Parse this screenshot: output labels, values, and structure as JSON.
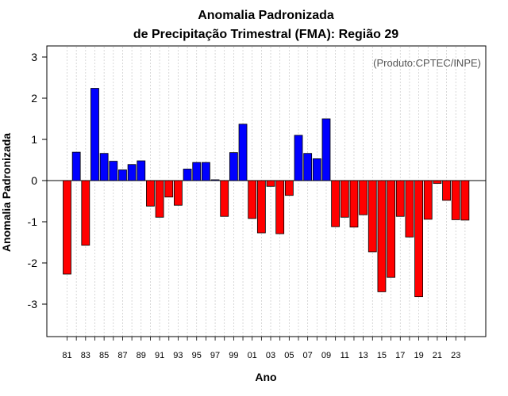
{
  "chart_data": {
    "type": "bar",
    "title_line1": "Anomalia Padronizada",
    "title_line2": "de Precipitação Trimestral (FMA): Região 29",
    "xlabel": "Ano",
    "ylabel": "Anomalia Padronizada",
    "credit": "(Produto:CPTEC/INPE)",
    "ylim": [
      -3.75,
      3.3
    ],
    "yticks": [
      -3,
      -2,
      -1,
      0,
      1,
      2,
      3
    ],
    "ytick_labels": [
      "-3",
      "-2",
      "-1",
      "0",
      "1",
      "2",
      "3"
    ],
    "categories": [
      "81",
      "82",
      "83",
      "84",
      "85",
      "86",
      "87",
      "88",
      "89",
      "90",
      "91",
      "92",
      "93",
      "94",
      "95",
      "96",
      "97",
      "98",
      "99",
      "00",
      "01",
      "02",
      "03",
      "04",
      "05",
      "06",
      "07",
      "08",
      "09",
      "10",
      "11",
      "12",
      "13",
      "14",
      "15",
      "16",
      "17",
      "18",
      "19",
      "20",
      "21",
      "22",
      "23",
      "24"
    ],
    "xtick_labels": [
      "81",
      "83",
      "85",
      "87",
      "89",
      "91",
      "93",
      "95",
      "97",
      "99",
      "01",
      "03",
      "05",
      "07",
      "09",
      "11",
      "13",
      "15",
      "17",
      "19",
      "21",
      "23"
    ],
    "values": [
      -2.27,
      0.69,
      -1.57,
      2.24,
      0.66,
      0.47,
      0.26,
      0.39,
      0.48,
      -0.62,
      -0.89,
      -0.4,
      -0.6,
      0.28,
      0.44,
      0.44,
      0.02,
      -0.87,
      0.68,
      1.37,
      -0.92,
      -1.27,
      -0.14,
      -1.29,
      -0.36,
      1.1,
      0.66,
      0.53,
      1.5,
      -1.12,
      -0.89,
      -1.13,
      -0.83,
      -1.73,
      -2.7,
      -2.35,
      -0.87,
      -1.37,
      -2.82,
      -0.94,
      -0.07,
      -0.48,
      -0.95,
      -0.96
    ],
    "positive_color": "#0000ff",
    "negative_color": "#ff0000",
    "grid": true
  }
}
